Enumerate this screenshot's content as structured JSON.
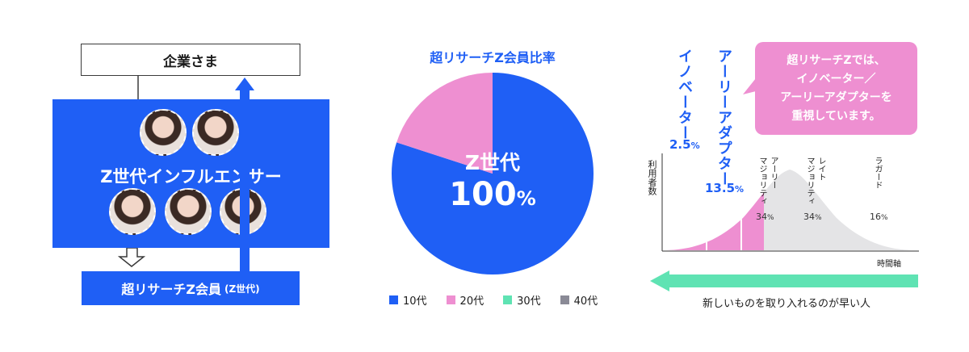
{
  "diagram": {
    "top_box": "企業さま",
    "panel_title": "Z世代インフルエンサー",
    "bottom_main": "超リサーチZ会員",
    "bottom_sub": "(Z世代)"
  },
  "pie": {
    "title": "超リサーチZ会員比率",
    "center_label": "Z世代",
    "center_value": "100",
    "center_unit": "%"
  },
  "curve": {
    "callout_lines": [
      "超リサーチZでは、",
      "イノベーター／",
      "アーリーアダプターを",
      "重視しています。"
    ],
    "innovator_label": "イノベーター",
    "innovator_pct": "2.5",
    "early_adopter_label": "アーリーアダプター",
    "early_adopter_pct": "13.5",
    "pct_unit": "%",
    "early_majority_label": [
      "アーリー",
      "マジョリティ"
    ],
    "early_majority_pct": "34",
    "late_majority_label": [
      "レイト",
      "マジョリティ"
    ],
    "late_majority_pct": "34",
    "laggard_label": "ラガード",
    "laggard_pct": "16",
    "y_axis": "利用者数",
    "x_axis": "時間軸",
    "arrow_caption": "新しいものを取り入れるのが早い人"
  },
  "colors": {
    "blue": "#1f5ff5",
    "pink": "#ee8fd1",
    "green": "#5fe3b3",
    "gray": "#8a8a96",
    "light_gray": "#e4e4e6"
  },
  "chart_data": {
    "type": "pie",
    "title": "超リサーチZ会員比率",
    "categories": [
      "10代",
      "20代",
      "30代",
      "40代"
    ],
    "values": [
      80,
      20,
      0,
      0
    ],
    "colors": [
      "#1f5ff5",
      "#ee8fd1",
      "#5fe3b3",
      "#8a8a96"
    ],
    "legend": "bottom"
  }
}
